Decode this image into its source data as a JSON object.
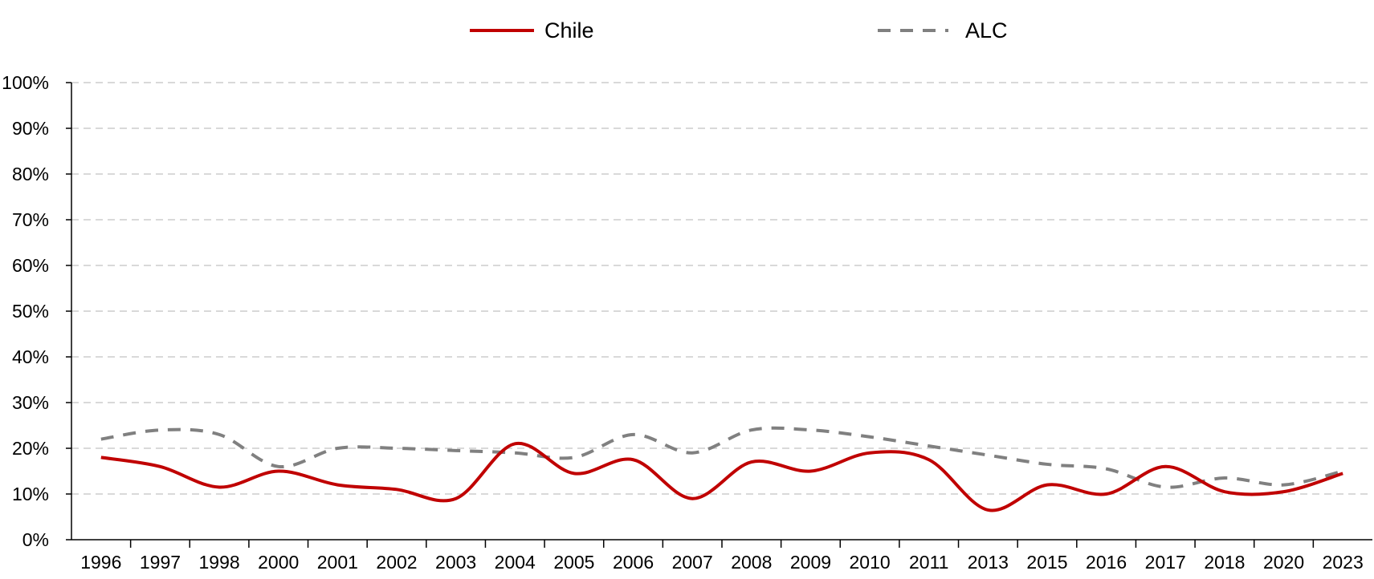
{
  "chart_data": {
    "type": "line",
    "title": "",
    "xlabel": "",
    "ylabel": "",
    "categories": [
      "1996",
      "1997",
      "1998",
      "2000",
      "2001",
      "2002",
      "2003",
      "2004",
      "2005",
      "2006",
      "2007",
      "2008",
      "2009",
      "2010",
      "2011",
      "2013",
      "2015",
      "2016",
      "2017",
      "2018",
      "2020",
      "2023"
    ],
    "ylim": [
      0,
      1
    ],
    "yticks": [
      "0%",
      "10%",
      "20%",
      "30%",
      "40%",
      "50%",
      "60%",
      "70%",
      "80%",
      "90%",
      "100%"
    ],
    "grid": true,
    "legend_position": "top-center",
    "series": [
      {
        "name": "Chile",
        "color": "#C00000",
        "style": "solid",
        "values": [
          0.18,
          0.16,
          0.115,
          0.15,
          0.12,
          0.11,
          0.09,
          0.21,
          0.145,
          0.175,
          0.09,
          0.17,
          0.15,
          0.19,
          0.175,
          0.065,
          0.12,
          0.1,
          0.16,
          0.105,
          0.105,
          0.145
        ]
      },
      {
        "name": "ALC",
        "color": "#808080",
        "style": "dashed",
        "values": [
          0.22,
          0.24,
          0.23,
          0.16,
          0.2,
          0.2,
          0.195,
          0.19,
          0.18,
          0.23,
          0.19,
          0.24,
          0.24,
          0.225,
          0.205,
          0.185,
          0.165,
          0.155,
          0.115,
          0.135,
          0.12,
          0.15
        ]
      }
    ]
  }
}
